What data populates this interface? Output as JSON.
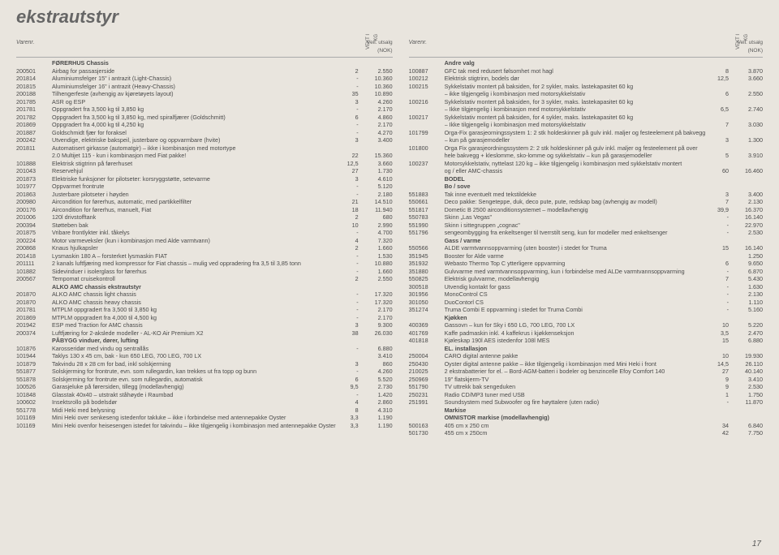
{
  "page": {
    "title": "ekstrautstyr",
    "pagenum": "17",
    "headers": {
      "varenr": "Varenr.",
      "vekt": "VEKT I KG",
      "pris_line1": "Veil. utsalg",
      "pris_line2": "(NOK)"
    }
  },
  "left": [
    {
      "sect": "FØRERHUS Chassis"
    },
    {
      "n": "200501",
      "d": "Airbag for passasjerside",
      "v": "2",
      "p": "2.550"
    },
    {
      "n": "201814",
      "d": "Aluminiumsfelger 15\" i antrazit (Light-Chassis)",
      "v": "-",
      "p": "10.360"
    },
    {
      "n": "201815",
      "d": "Aluminiumsfelger 16\" i antrazit (Heavy-Chassis)",
      "v": "-",
      "p": "10.360"
    },
    {
      "n": "200188",
      "d": "Tilhengerfeste (avhengig av kjøretøyets layout)",
      "v": "35",
      "p": "10.890"
    },
    {
      "n": "201785",
      "d": "ASR og ESP",
      "v": "3",
      "p": "4.260"
    },
    {
      "n": "201781",
      "d": "Oppgradert fra 3,500 kg til 3,850 kg",
      "v": "-",
      "p": "2.170"
    },
    {
      "n": "201782",
      "d": "Oppgradert fra 3,500 kg til 3,850 kg, med spiralfjærer (Goldschmitt)",
      "v": "6",
      "p": "4.860"
    },
    {
      "n": "201869",
      "d": "Oppgradert fra 4,000 kg til 4,250 kg",
      "v": "-",
      "p": "2.170"
    },
    {
      "n": "201887",
      "d": "Goldschmidt fjær for foraksel",
      "v": "-",
      "p": "4.270"
    },
    {
      "n": "200242",
      "d": "Utvendige, elektriske bakspeil, justerbare og oppvarmbare (hvite)",
      "v": "3",
      "p": "3.400"
    },
    {
      "n": "201811",
      "d": "Automatisert girkasse (automatgir) – ikke i kombinasjon med motortype",
      "v": "",
      "p": ""
    },
    {
      "n": "",
      "d": "2.0 Multijet 115 - kun i kombinasjon med Fiat pakke!",
      "v": "22",
      "p": "15.360"
    },
    {
      "n": "101888",
      "d": "Elektrisk stigtrinn på førerhuset",
      "v": "12,5",
      "p": "3.660"
    },
    {
      "n": "201043",
      "d": "Reservehjul",
      "v": "27",
      "p": "1.730"
    },
    {
      "n": "201873",
      "d": "Elektriske funksjoner for pilotseter: korsryggstøtte, setevarme",
      "v": "3",
      "p": "4.610"
    },
    {
      "n": "101977",
      "d": "Oppvarmet frontrute",
      "v": "-",
      "p": "5.120"
    },
    {
      "n": "201863",
      "d": "Justerbare pilotseter i høyden",
      "v": "-",
      "p": "2.180"
    },
    {
      "n": "200980",
      "d": "Aircondition for førerhus, automatic, med partikkelfilter",
      "v": "21",
      "p": "14.510"
    },
    {
      "n": "200176",
      "d": "Aircondition for førerhus, manuelt, Fiat",
      "v": "18",
      "p": "11.940"
    },
    {
      "n": "201006",
      "d": "120l drivstofftank",
      "v": "2",
      "p": "680"
    },
    {
      "n": "200394",
      "d": "Støtteben bak",
      "v": "10",
      "p": "2.990"
    },
    {
      "n": "201875",
      "d": "Vribare frontlykter inkl. tåkelys",
      "v": "-",
      "p": "4.700"
    },
    {
      "n": "200224",
      "d": "Motor varmeveksler (kun i kombinasjon med Alde varmtvann)",
      "v": "4",
      "p": "7.320"
    },
    {
      "n": "200868",
      "d": "Knaus hjulkapsler",
      "v": "2",
      "p": "1.660"
    },
    {
      "n": "201418",
      "d": "Lysmaskin 180 A – forsterket lysmaskin FIAT",
      "v": "-",
      "p": "1.530"
    },
    {
      "n": "201111",
      "d": "2 kanals luftfjæring med kompressor for Fiat chassis – mulig ved oppradering fra 3,5 til 3,85 tonn",
      "v": "-",
      "p": "10.880"
    },
    {
      "n": "101882",
      "d": "Sidevinduer i isolerglass for førerhus",
      "v": "-",
      "p": "1.660"
    },
    {
      "n": "200567",
      "d": "Tempomat cruisekontroll",
      "v": "2",
      "p": "2.550"
    },
    {
      "sect": "ALKO AMC chassis ekstrautstyr"
    },
    {
      "n": "201870",
      "d": "ALKO AMC chassis light chassis",
      "v": "-",
      "p": "17.320"
    },
    {
      "n": "201870",
      "d": "ALKO AMC chassis heavy chassis",
      "v": "-",
      "p": "17.320"
    },
    {
      "n": "201781",
      "d": "MTPLM oppgradert fra 3,500 til 3,850 kg",
      "v": "-",
      "p": "2.170"
    },
    {
      "n": "201869",
      "d": "MTPLM oppgradert fra 4,000 til 4,500 kg",
      "v": "-",
      "p": "2.170"
    },
    {
      "n": "201942",
      "d": "ESP med Traction for AMC chassis",
      "v": "3",
      "p": "9.300"
    },
    {
      "n": "200374",
      "d": "Luftfjæring for 2-akslede modeller - AL-KO Air Premium X2",
      "v": "38",
      "p": "26.030"
    },
    {
      "n": "",
      "d": "",
      "v": "",
      "p": ""
    },
    {
      "sect": "PÅBYGG vinduer, dører, lufting"
    },
    {
      "n": "101876",
      "d": "Karosseridør med vindu og sentrallås",
      "v": "-",
      "p": "6.880"
    },
    {
      "n": "101944",
      "d": "Taklys 130 x 45 cm, bak - kun 650 LEG, 700 LEG, 700 LX",
      "v": "",
      "p": "3.410"
    },
    {
      "n": "101879",
      "d": "Takvindu 28 x 28 cm for bad, inkl solskjerming",
      "v": "3",
      "p": "860"
    },
    {
      "n": "551877",
      "d": "Solskjerming for frontrute, evn. som rullegardin, kan trekkes ut fra topp og bunn",
      "v": "-",
      "p": "4.260"
    },
    {
      "n": "551878",
      "d": "Solskjerming for frontrute evn. som rullegardin, automatisk",
      "v": "6",
      "p": "5.520"
    },
    {
      "n": "100526",
      "d": "Garasjeluke på førersiden, tillegg (modellavhengig)",
      "v": "9,5",
      "p": "2.730"
    },
    {
      "n": "101848",
      "d": "Glasstak 40x40 – utstrakt ståhøyde i Raumbad",
      "v": "-",
      "p": "1.420"
    },
    {
      "n": "100602",
      "d": "Insektsrollo på bodelsdør",
      "v": "4",
      "p": "2.860"
    },
    {
      "n": "551778",
      "d": "Midi Heki med belysning",
      "v": "8",
      "p": "4.310"
    },
    {
      "n": "101169",
      "d": "Mini Heki over senkeseng istedenfor takluke – ikke i forbindelse med antennepakke Oyster",
      "v": "3,3",
      "p": "1.190"
    },
    {
      "n": "101169",
      "d": "Mini Heki ovenfor heisesengen istedet for takvindu – ikke tilgjengelig i kombinasjon med antennepakke Oyster",
      "v": "3,3",
      "p": "1.190"
    }
  ],
  "right": [
    {
      "sect": "Andre valg"
    },
    {
      "n": "100887",
      "d": "GFC tak med redusert følsomhet mot hagl",
      "v": "8",
      "p": "3.870"
    },
    {
      "n": "100212",
      "d": "Elektrisk stigtrinn, bodels dør",
      "v": "12,5",
      "p": "3.660"
    },
    {
      "n": "100215",
      "d": "Sykkelstativ montert på baksiden, for 2 sykler, maks. lastekapasitet 60 kg",
      "v": "",
      "p": ""
    },
    {
      "n": "",
      "d": "– ikke tilgjengelig i kombinasjon med motorsykkelstativ",
      "v": "6",
      "p": "2.550"
    },
    {
      "n": "100216",
      "d": "Sykkelstativ montert på baksiden, for 3 sykler, maks. lastekapasitet 60 kg",
      "v": "",
      "p": ""
    },
    {
      "n": "",
      "d": "– Ikke tilgjengelig i kombinasjon med motorsykkelstativ",
      "v": "6,5",
      "p": "2.740"
    },
    {
      "n": "100217",
      "d": "Sykkelstativ montert på baksiden, for 4 sykler, maks. lastekapasitet 60 kg",
      "v": "",
      "p": ""
    },
    {
      "n": "",
      "d": "– Ikke tilgjengelig i kombinasjon med motorsykkelstativ",
      "v": "7",
      "p": "3.030"
    },
    {
      "n": "101799",
      "d": "Orga-Fix garasjeorningssystem 1: 2 stk holdeskinner på gulv inkl. maljer og festeelement på bakvegg",
      "v": "",
      "p": ""
    },
    {
      "n": "",
      "d": "– kun på garasjemodeller",
      "v": "3",
      "p": "1.300"
    },
    {
      "n": "101800",
      "d": "Orga Fix garasjeordningssystem 2: 2 stk holdeskinner på gulv inkl. maljer og festeelement på over",
      "v": "",
      "p": ""
    },
    {
      "n": "",
      "d": "hele bakvegg + kleslomme, sko-lomme og sykkelstativ – kun på garasjemodeller",
      "v": "5",
      "p": "3.910"
    },
    {
      "n": "100237",
      "d": "Motorsykkelstativ, nyttelast 120 kg – ikke tilgjengelig i kombinasjon med sykkelstativ montert",
      "v": "",
      "p": ""
    },
    {
      "n": "",
      "d": "og / eller AMC-chassis",
      "v": "60",
      "p": "16.460"
    },
    {
      "n": "",
      "d": "",
      "v": "",
      "p": ""
    },
    {
      "sect": "BODEL"
    },
    {
      "sect": "Bo / sove"
    },
    {
      "n": "551883",
      "d": "Tak inne eventuelt med tekstildekke",
      "v": "3",
      "p": "3.400"
    },
    {
      "n": "550661",
      "d": "Deco pakke: Sengeteppe, duk, deco pute, pute, redskap bag (avhengig av modell)",
      "v": "7",
      "p": "2.130"
    },
    {
      "n": "551817",
      "d": "Dometic B 2500 airconditionsystemet – modellavhengig",
      "v": "39,9",
      "p": "16.370"
    },
    {
      "n": "550783",
      "d": "Skinn „Las Vegas\"",
      "v": "-",
      "p": "16.140"
    },
    {
      "n": "551990",
      "d": "Skinn i sittegruppen „cognac\"",
      "v": "-",
      "p": "22.970"
    },
    {
      "n": "551796",
      "d": "sengeombygging fra enkeltsenger til tverrstilt seng, kun for modeller med enkeltsenger",
      "v": "-",
      "p": "2.530"
    },
    {
      "sect": "Gass / varme"
    },
    {
      "n": "550566",
      "d": "ALDE varmtvannsoppvarming (uten booster) i stedet for Truma",
      "v": "15",
      "p": "16.140"
    },
    {
      "n": "351945",
      "d": "Booster for Alde varme",
      "v": "",
      "p": "1.250"
    },
    {
      "n": "351932",
      "d": "Webasto Thermo Top C ytterligere oppvarming",
      "v": "6",
      "p": "9.650"
    },
    {
      "n": "351880",
      "d": "Gulvvarme med varmtvannsoppvarming, kun i forbindelse med ALDe varmtvannsoppvarming",
      "v": "-",
      "p": "6.870"
    },
    {
      "n": "550825",
      "d": "Elektrisk gulvvarme, modellavhengig",
      "v": "7",
      "p": "5.430"
    },
    {
      "n": "300518",
      "d": "Utvendig kontakt for gass",
      "v": "-",
      "p": "1.630"
    },
    {
      "n": "301956",
      "d": "MonoControl CS",
      "v": "-",
      "p": "2.130"
    },
    {
      "n": "301050",
      "d": "DuoContorl CS",
      "v": "-",
      "p": "1.110"
    },
    {
      "n": "351274",
      "d": "Truma Combi E oppvarming i stedet for Truma Combi",
      "v": "-",
      "p": "5.160"
    },
    {
      "sect": "Kjøkken"
    },
    {
      "n": "400369",
      "d": "Gassovn – kun for Sky i 650 LG, 700 LEG, 700 LX",
      "v": "10",
      "p": "5.220"
    },
    {
      "n": "401769",
      "d": "Kaffe padmaskin inkl. 4 kaffekrus i kjøkkenseksjon",
      "v": "3,5",
      "p": "2.470"
    },
    {
      "n": "401818",
      "d": "Kjøleskap 190l AES istedenfor 108l MES",
      "v": "15",
      "p": "6.880"
    },
    {
      "sect": "EL. installasjon"
    },
    {
      "n": "250004",
      "d": "CARO digital antenne pakke",
      "v": "10",
      "p": "19.930"
    },
    {
      "n": "250430",
      "d": "Oyster digital antenne pakke – ikke tilgjengelig i kombinasjon med Mini Heki i front",
      "v": "14,5",
      "p": "26.110"
    },
    {
      "n": "210025",
      "d": "2 ekstrabatterier for el. – Bord-AGM-batteri i bodeler og benzincelle Efoy Comfort 140",
      "v": "27",
      "p": "40.140"
    },
    {
      "n": "250969",
      "d": "19\" flatskjerm-TV",
      "v": "9",
      "p": "3.410"
    },
    {
      "n": "551790",
      "d": "TV uttrekk bak sengeduken",
      "v": "9",
      "p": "2.530"
    },
    {
      "n": "250231",
      "d": "Radio CD/MP3 tuner med USB",
      "v": "1",
      "p": "1.750"
    },
    {
      "n": "251991",
      "d": "Soundsystem med Subwoofer og fire høyttalere (uten radio)",
      "v": "-",
      "p": "11.870"
    },
    {
      "n": "",
      "d": "",
      "v": "",
      "p": ""
    },
    {
      "sect": "Markise"
    },
    {
      "sect": "OMNISTOR markise (modellavhengig)"
    },
    {
      "n": "500163",
      "d": "405 cm x 250 cm",
      "v": "34",
      "p": "6.840"
    },
    {
      "n": "501730",
      "d": "455 cm x 250cm",
      "v": "42",
      "p": "7.750"
    }
  ]
}
